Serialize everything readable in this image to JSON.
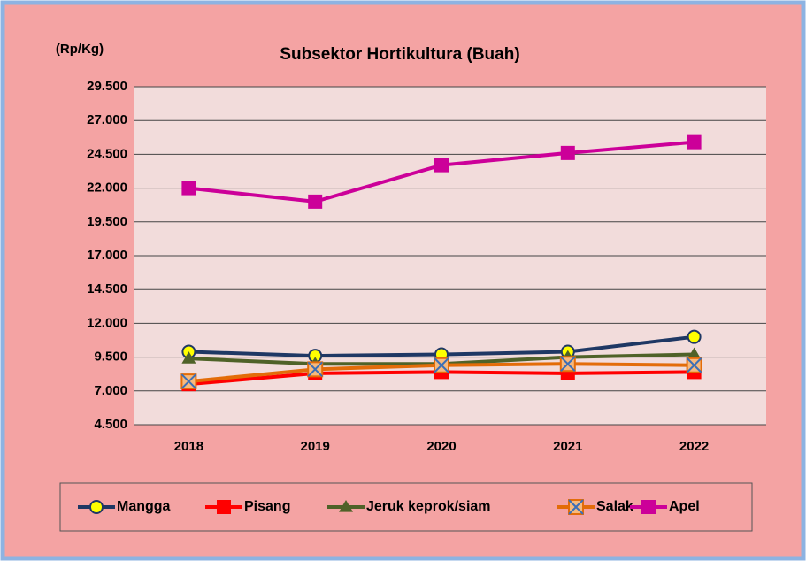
{
  "chart_data": {
    "type": "line",
    "title": "Subsektor Hortikultura  (Buah)",
    "y_label": "(Rp/Kg)",
    "categories": [
      "2018",
      "2019",
      "2020",
      "2021",
      "2022"
    ],
    "series": [
      {
        "name": "Mangga",
        "color": "#1f3864",
        "marker": "circle",
        "values": [
          9900,
          9600,
          9700,
          9900,
          11000
        ]
      },
      {
        "name": "Pisang",
        "color": "#ff0000",
        "marker": "square",
        "values": [
          7500,
          8300,
          8400,
          8300,
          8400
        ]
      },
      {
        "name": "Jeruk keprok/siam",
        "color": "#4f6228",
        "marker": "triangle",
        "values": [
          9400,
          9000,
          9000,
          9500,
          9700
        ]
      },
      {
        "name": "Salak",
        "color": "#e36c09",
        "marker": "xsquare",
        "values": [
          7700,
          8600,
          8900,
          9000,
          8900
        ]
      },
      {
        "name": "Apel",
        "color": "#cc0099",
        "marker": "square",
        "values": [
          22000,
          21000,
          23700,
          24600,
          25400
        ]
      }
    ],
    "ylim": [
      4500,
      29500
    ],
    "yticks": [
      {
        "value": 4500,
        "label": "4.500"
      },
      {
        "value": 7000,
        "label": "7.000"
      },
      {
        "value": 9500,
        "label": "9.500"
      },
      {
        "value": 12000,
        "label": "12.000"
      },
      {
        "value": 14500,
        "label": "14.500"
      },
      {
        "value": 17000,
        "label": "17.000"
      },
      {
        "value": 19500,
        "label": "19.500"
      },
      {
        "value": 22000,
        "label": "22.000"
      },
      {
        "value": 24500,
        "label": "24.500"
      },
      {
        "value": 27000,
        "label": "27.000"
      },
      {
        "value": 29500,
        "label": "29.500"
      }
    ],
    "grid": true
  }
}
